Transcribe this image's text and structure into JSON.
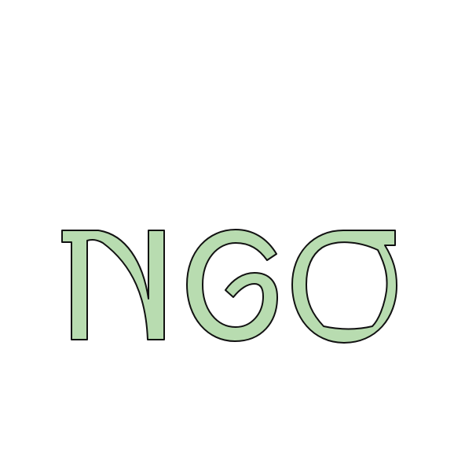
{
  "logo": {
    "text": "NGO",
    "letters": [
      "N",
      "G",
      "O"
    ],
    "fill_color": "#b8dcb0",
    "outline_color": "#111111",
    "background_color": "#ffffff"
  }
}
